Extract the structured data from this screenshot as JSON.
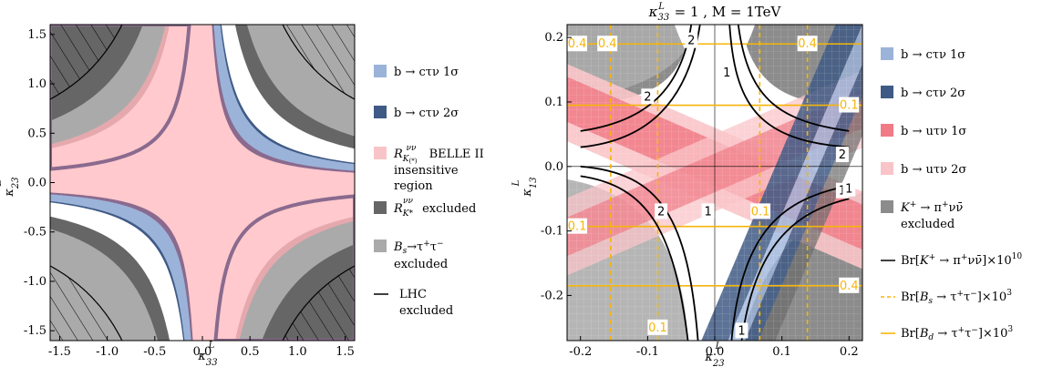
{
  "chart_data": [
    {
      "type": "contour",
      "title": "",
      "xlabel": "κ33L",
      "ylabel": "κ23L",
      "xlim": [
        -1.6,
        1.6
      ],
      "ylim": [
        -1.6,
        1.6
      ],
      "xticks": [
        "-1.5",
        "-1.0",
        "-0.5",
        "0.0",
        "0.5",
        "1.0",
        "1.5"
      ],
      "xtick_values": [
        -1.5,
        -1.0,
        -0.5,
        0.0,
        0.5,
        1.0,
        1.5
      ],
      "yticks": [
        "-1.5",
        "-1.0",
        "-0.5",
        "0.0",
        "0.5",
        "1.0",
        "1.5"
      ],
      "ytick_values": [
        -1.5,
        -1.0,
        -0.5,
        0.0,
        0.5,
        1.0,
        1.5
      ],
      "legend_position": "right",
      "legend": [
        {
          "label": "b → cτν 1σ",
          "color": "#9bb3d9"
        },
        {
          "label": "b → cτν 2σ",
          "color": "#3f5a85"
        },
        {
          "label": "RK(*)νν BELLE II insensitive region",
          "color": "#f9c4c8"
        },
        {
          "label": "RK*νν excluded",
          "color": "#666666"
        },
        {
          "label": "Bs→τ+τ− excluded",
          "color": "#aaaaaa"
        },
        {
          "label": "LHC excluded",
          "color": "#000000"
        }
      ],
      "regions": {
        "pink_product": 0.2,
        "blue_band": [
          0.2,
          0.3
        ],
        "white_gap": [
          0.3,
          0.55
        ],
        "dark_gray_band": [
          0.55,
          0.75
        ],
        "light_gray_product": 0.75,
        "lhc_product": 1.35
      }
    },
    {
      "type": "contour",
      "title": "κ33L = 1 ,  M = 1TeV",
      "xlabel": "κ23L",
      "ylabel": "κ13L",
      "xlim": [
        -0.22,
        0.22
      ],
      "ylim": [
        -0.27,
        0.22
      ],
      "xticks": [
        "-0.2",
        "-0.1",
        "0.0",
        "0.1",
        "0.2"
      ],
      "xtick_values": [
        -0.2,
        -0.1,
        0.0,
        0.1,
        0.2
      ],
      "yticks": [
        "-0.2",
        "-0.1",
        "0.0",
        "0.1",
        "0.2"
      ],
      "ytick_values": [
        -0.2,
        -0.1,
        0.0,
        0.1,
        0.2
      ],
      "legend_position": "right",
      "legend": [
        {
          "label": "b → cτν 1σ",
          "color": "#9bb3d9"
        },
        {
          "label": "b → cτν 2σ",
          "color": "#3f5a85"
        },
        {
          "label": "b → uτν 1σ",
          "color": "#f07b86"
        },
        {
          "label": "b → uτν 2σ",
          "color": "#f9c4c8"
        },
        {
          "label": "K+ → π+νν̄ excluded",
          "color": "#8c8c8c"
        },
        {
          "label": "Br[K+ → π+νν̄]×10^10",
          "color": "#000000"
        },
        {
          "label": "Br[Bs → τ+τ−]×10^3",
          "color": "#f5b50a"
        },
        {
          "label": "Br[Bd → τ+τ−]×10^3",
          "color": "#f5b50a"
        }
      ],
      "contour_labels": {
        "black": [
          "2",
          "2",
          "1",
          "2",
          "1",
          "2",
          "1",
          "1",
          "1"
        ],
        "orange": [
          "0.4",
          "0.4",
          "0.4",
          "0.1",
          "0.1",
          "0.1",
          "0.4",
          "0.1"
        ]
      },
      "bs_dashed_x": [
        -0.155,
        -0.085,
        0.067,
        0.138
      ],
      "bd_solid_y": [
        0.19,
        0.095,
        -0.093,
        -0.185
      ]
    }
  ]
}
